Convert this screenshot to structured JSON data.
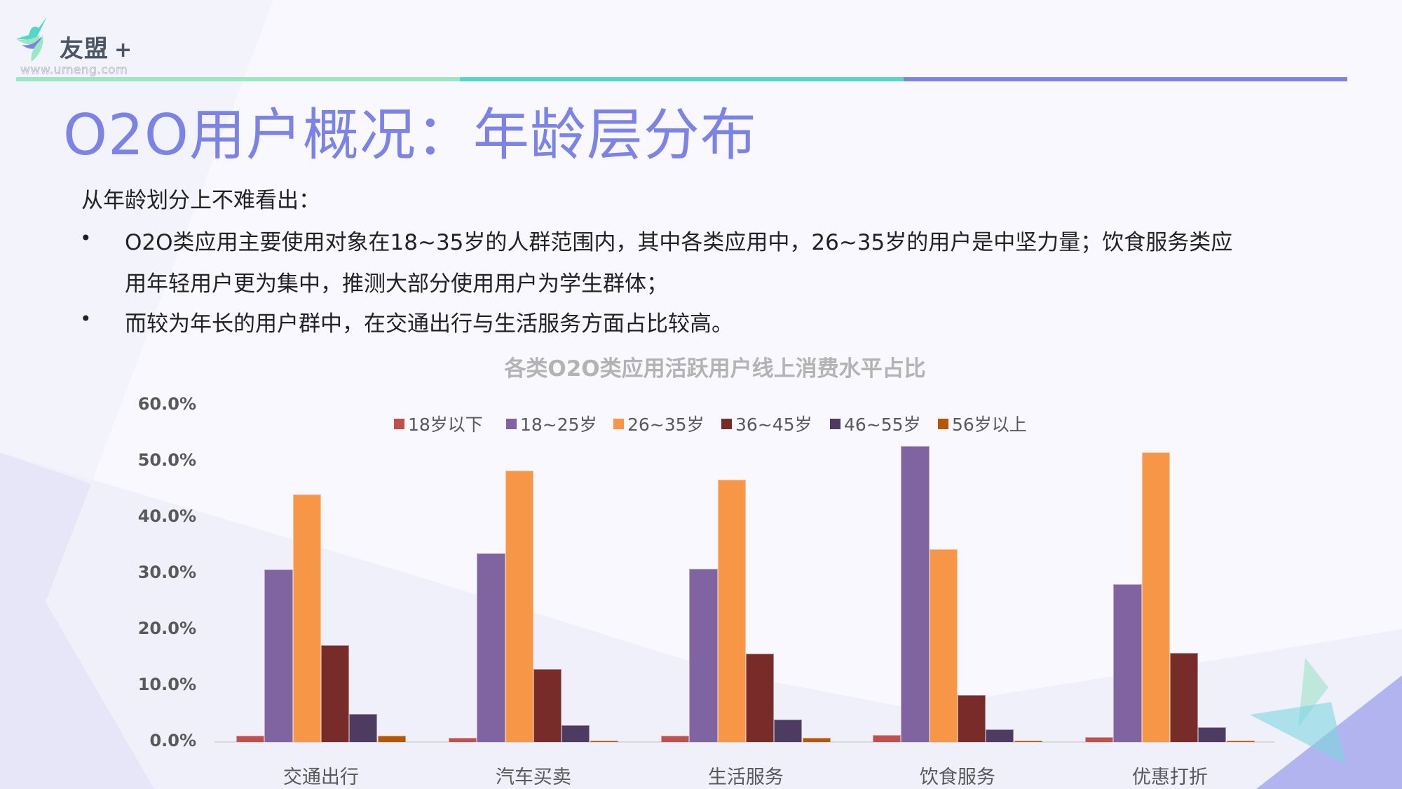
{
  "brand": {
    "name": "友盟",
    "plus": "+",
    "url": "www.umeng.com",
    "stripe_colors": [
      "#9be7c0",
      "#56d6c9",
      "#7b83e6"
    ]
  },
  "page": {
    "title": "O2O用户概况：年龄层分布",
    "title_color": "#7b83e6",
    "intro": "从年龄划分上不难看出：",
    "bullets": [
      {
        "line1": "O2O类应用主要使用对象在18~35岁的人群范围内，其中各类应用中，26~35岁的用户是中坚力量；饮食服务类应",
        "line2": "用年轻用户更为集中，推测大部分使用用户为学生群体；"
      },
      {
        "line1": "而较为年长的用户群中，在交通出行与生活服务方面占比较高。"
      }
    ],
    "bullet_symbol": "•"
  },
  "chart_data": {
    "type": "bar",
    "title": "各类O2O类应用活跃用户线上消费水平占比",
    "xlabel": "",
    "ylabel": "",
    "ylim": [
      0,
      60
    ],
    "y_ticks": [
      "0.0%",
      "10.0%",
      "20.0%",
      "30.0%",
      "40.0%",
      "50.0%",
      "60.0%"
    ],
    "grid": false,
    "legend_position": "top",
    "categories": [
      "交通出行",
      "汽车买卖",
      "生活服务",
      "饮食服务",
      "优惠打折"
    ],
    "series": [
      {
        "name": "18岁以下",
        "color": "#c0504d",
        "values": [
          1.1,
          0.8,
          1.1,
          1.2,
          0.9
        ]
      },
      {
        "name": "18~25岁",
        "color": "#8064a2",
        "values": [
          30.8,
          33.6,
          30.9,
          52.8,
          28.1
        ]
      },
      {
        "name": "26~35岁",
        "color": "#f79646",
        "values": [
          44.1,
          48.4,
          46.8,
          34.4,
          51.6
        ]
      },
      {
        "name": "36~45岁",
        "color": "#772c2a",
        "values": [
          17.2,
          13.0,
          15.7,
          8.4,
          15.9
        ]
      },
      {
        "name": "46~55岁",
        "color": "#4d3b62",
        "values": [
          5.0,
          3.0,
          4.0,
          2.2,
          2.6
        ]
      },
      {
        "name": "56岁以上",
        "color": "#b65708",
        "values": [
          1.1,
          0.3,
          0.7,
          0.3,
          0.3
        ]
      }
    ]
  }
}
